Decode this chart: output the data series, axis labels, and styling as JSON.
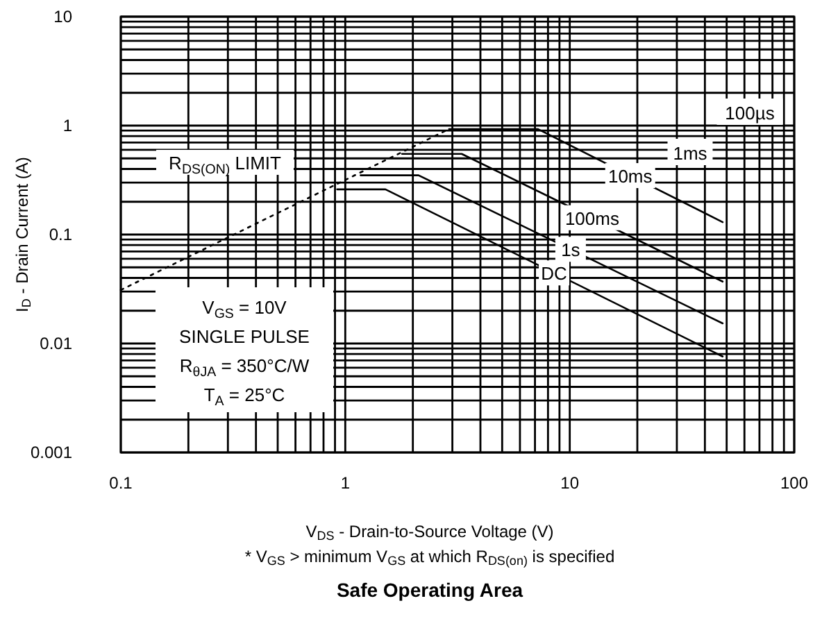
{
  "chart_data": {
    "type": "line",
    "title": "Safe Operating Area",
    "xlabel": "V$_{DS}$ - Drain-to-Source Voltage (V)",
    "ylabel": "I$_{D}$ - Drain Current (A)",
    "log": "xy",
    "grid": true,
    "xlim": [
      0.1,
      100
    ],
    "ylim": [
      0.001,
      10
    ],
    "xticks": [
      0.1,
      1,
      10,
      100
    ],
    "yticks": [
      0.001,
      0.01,
      0.1,
      1,
      10
    ],
    "series": [
      {
        "name": "R$_{DS(ON)}$ LIMIT",
        "color": "#000000",
        "line_style": "dotted",
        "x": [
          0.1,
          2.9
        ],
        "values": [
          0.031,
          0.93
        ]
      },
      {
        "name": "10ms",
        "color": "#000000",
        "line_style": "solid",
        "x": [
          2.9,
          7.2,
          48
        ],
        "values": [
          0.93,
          0.93,
          0.13
        ]
      },
      {
        "name": "100ms",
        "color": "#000000",
        "line_style": "solid",
        "x": [
          1.79,
          3.3,
          48
        ],
        "values": [
          0.55,
          0.55,
          0.037
        ]
      },
      {
        "name": "1s",
        "color": "#000000",
        "line_style": "solid",
        "x": [
          1.17,
          2.12,
          48
        ],
        "values": [
          0.35,
          0.35,
          0.0153
        ]
      },
      {
        "name": "DC",
        "color": "#000000",
        "line_style": "solid",
        "x": [
          0.92,
          1.51,
          48
        ],
        "values": [
          0.26,
          0.26,
          0.0076
        ]
      }
    ],
    "annotations": [
      "100µs",
      "1ms",
      "V$_{GS}$ = 10V",
      "SINGLE PULSE",
      "R$_{θJA}$ = 350°C/W",
      "T$_{A}$ = 25°C",
      "* V$_{GS}$ > minimum V$_{GS}$ at which R$_{DS(on)}$ is specified"
    ]
  }
}
